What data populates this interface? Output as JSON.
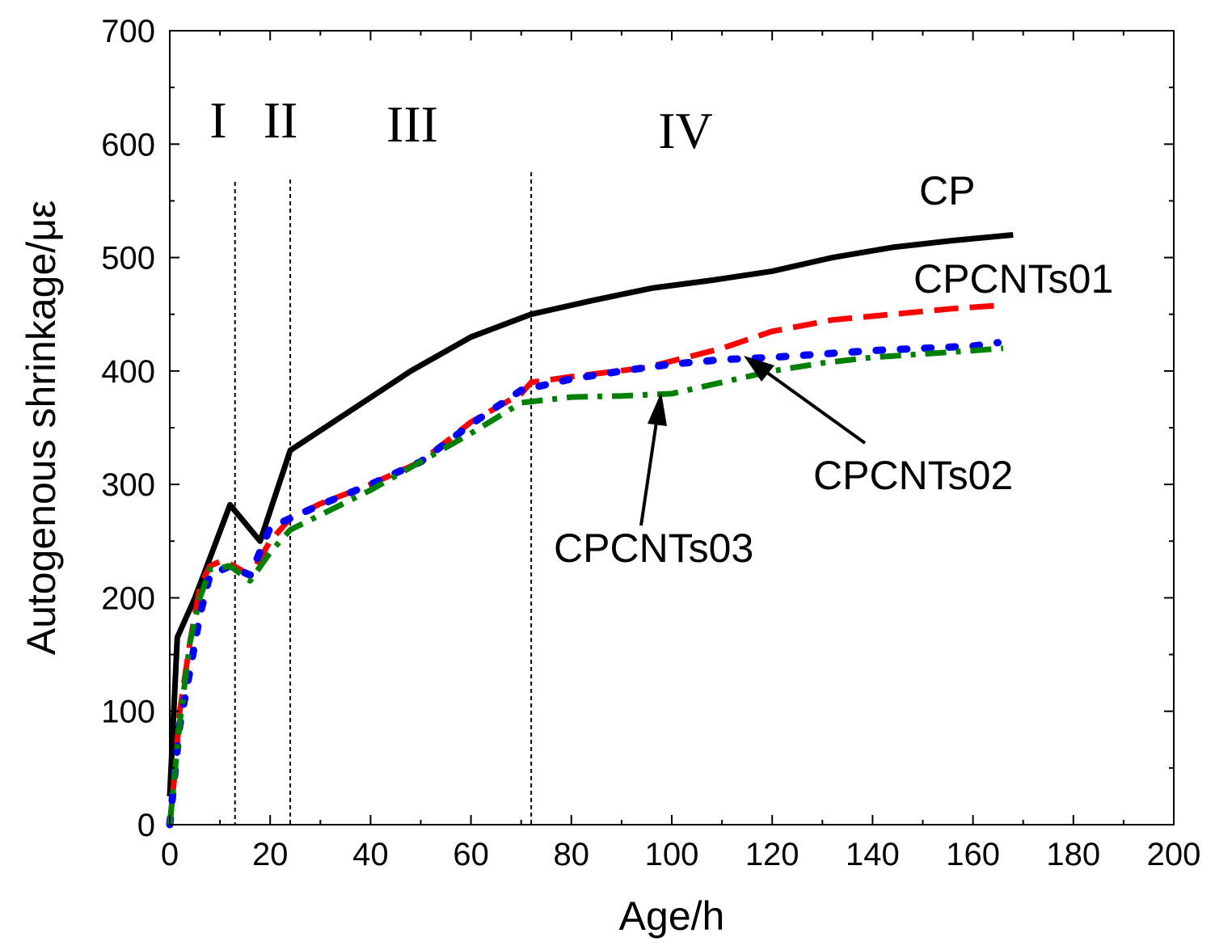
{
  "chart_data": {
    "type": "line",
    "title": "",
    "xlabel": "Age/h",
    "ylabel": "Autogenous shrinkage/με",
    "xlim": [
      0,
      200
    ],
    "ylim": [
      0,
      700
    ],
    "xticks": [
      0,
      20,
      40,
      60,
      80,
      100,
      120,
      140,
      160,
      180,
      200
    ],
    "yticks": [
      0,
      100,
      200,
      300,
      400,
      500,
      600,
      700
    ],
    "grid": false,
    "stage_dividers": [
      13,
      24,
      72
    ],
    "stage_labels": [
      "I",
      "II",
      "III",
      "IV"
    ],
    "series": [
      {
        "name": "CP",
        "color": "#000000",
        "style": "solid",
        "x": [
          0,
          1.5,
          5,
          8,
          12,
          18,
          24,
          36,
          48,
          60,
          72,
          84,
          96,
          108,
          120,
          132,
          144,
          156,
          168
        ],
        "y": [
          25,
          165,
          200,
          235,
          282,
          250,
          330,
          365,
          400,
          430,
          450,
          462,
          473,
          480,
          488,
          500,
          509,
          515,
          520
        ]
      },
      {
        "name": "CPCNTs01",
        "color": "#ff0000",
        "style": "dashed",
        "x": [
          0,
          1,
          2,
          4,
          6,
          8,
          10,
          12,
          16,
          20,
          24,
          30,
          40,
          50,
          60,
          70,
          72,
          80,
          95,
          110,
          120,
          132,
          144,
          156,
          166
        ],
        "y": [
          0,
          45,
          100,
          160,
          210,
          228,
          232,
          230,
          220,
          250,
          270,
          283,
          300,
          320,
          355,
          380,
          390,
          395,
          403,
          420,
          435,
          445,
          450,
          455,
          458
        ]
      },
      {
        "name": "CPCNTs02",
        "color": "#0000ff",
        "style": "dotted",
        "x": [
          0,
          1,
          2,
          4,
          6,
          8,
          12,
          16,
          20,
          24,
          30,
          40,
          50,
          60,
          70,
          80,
          90,
          100,
          110,
          120,
          130,
          140,
          150,
          160,
          165
        ],
        "y": [
          0,
          45,
          88,
          135,
          185,
          220,
          228,
          220,
          262,
          270,
          282,
          300,
          320,
          353,
          383,
          393,
          400,
          406,
          410,
          412,
          415,
          418,
          420,
          422,
          425
        ]
      },
      {
        "name": "CPCNTs03",
        "color": "#008000",
        "style": "dashdot",
        "x": [
          0,
          1,
          2,
          4,
          6,
          8,
          12,
          16,
          20,
          24,
          30,
          40,
          50,
          60,
          70,
          80,
          90,
          100,
          110,
          120,
          130,
          140,
          150,
          160,
          166
        ],
        "y": [
          0,
          45,
          90,
          160,
          200,
          225,
          228,
          215,
          240,
          260,
          273,
          295,
          320,
          345,
          372,
          377,
          378,
          380,
          390,
          400,
          407,
          412,
          415,
          418,
          420
        ]
      }
    ],
    "annotations": [
      {
        "text": "CP",
        "target_series": "CP"
      },
      {
        "text": "CPCNTs01",
        "target_series": "CPCNTs01"
      },
      {
        "text": "CPCNTs02",
        "target_series": "CPCNTs02",
        "arrow_to": [
          114,
          415
        ]
      },
      {
        "text": "CPCNTs03",
        "target_series": "CPCNTs03",
        "arrow_to": [
          98,
          382
        ]
      }
    ]
  }
}
